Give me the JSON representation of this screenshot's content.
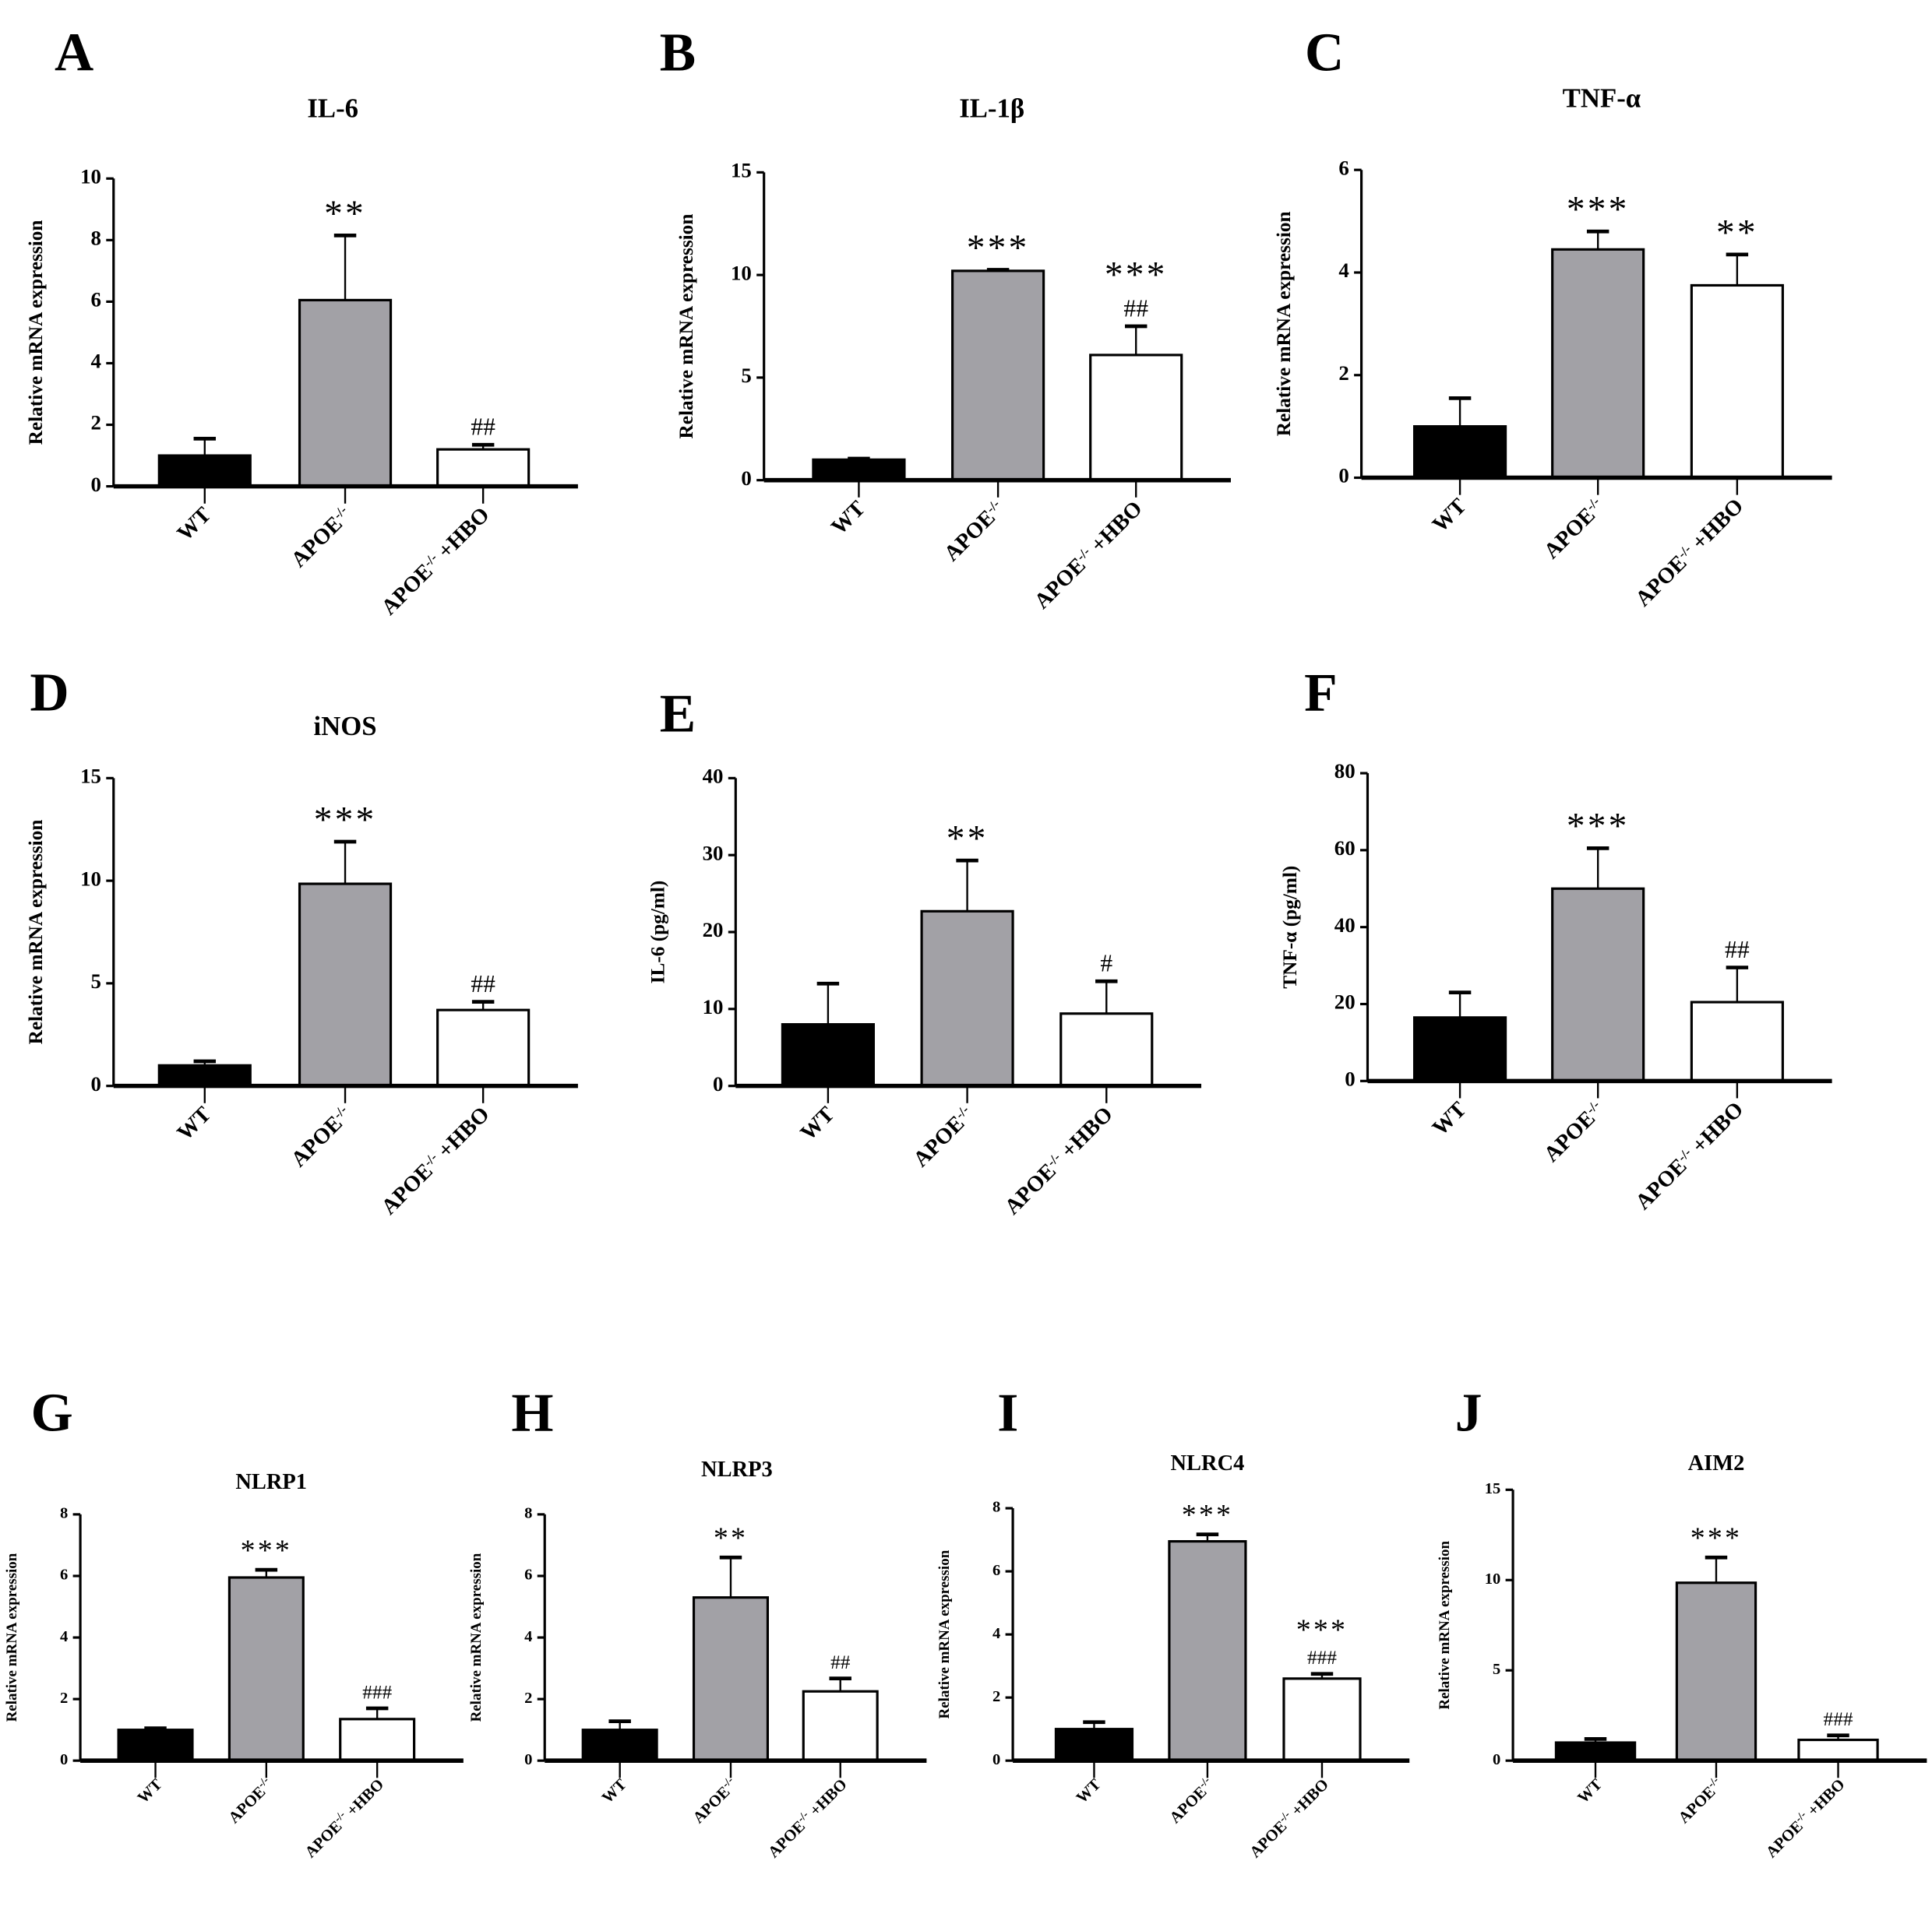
{
  "colors": {
    "WT": "#000000",
    "APOE": "#a2a1a6",
    "HBO": "#ffffff",
    "axis": "#000000"
  },
  "chart_data": [
    {
      "panel": "A",
      "type": "bar",
      "title": "IL-6",
      "ylabel": "Relative mRNA expression",
      "ylim": [
        0,
        10
      ],
      "yticks": [
        0,
        2,
        4,
        6,
        8,
        10
      ],
      "categories": [
        "WT",
        "APOE-/-",
        "APOE-/- +HBO"
      ],
      "values": [
        1.0,
        6.05,
        1.2
      ],
      "errors": [
        0.55,
        2.1,
        0.15
      ],
      "annotations": [
        [],
        [
          "**"
        ],
        [
          "##"
        ]
      ]
    },
    {
      "panel": "B",
      "type": "bar",
      "title": "IL-1β",
      "ylabel": "Relative mRNA expression",
      "ylim": [
        0,
        15
      ],
      "yticks": [
        0,
        5,
        10,
        15
      ],
      "categories": [
        "WT",
        "APOE-/-",
        "APOE-/- +HBO"
      ],
      "values": [
        1.0,
        10.2,
        6.1
      ],
      "errors": [
        0.05,
        0.05,
        1.4
      ],
      "annotations": [
        [],
        [
          "***"
        ],
        [
          "***",
          "##"
        ]
      ]
    },
    {
      "panel": "C",
      "type": "bar",
      "title": "TNF-α",
      "ylabel": "Relative mRNA expression",
      "ylim": [
        0,
        6
      ],
      "yticks": [
        0,
        2,
        4,
        6
      ],
      "categories": [
        "WT",
        "APOE-/-",
        "APOE-/- +HBO"
      ],
      "values": [
        1.0,
        4.45,
        3.75
      ],
      "errors": [
        0.55,
        0.35,
        0.6
      ],
      "annotations": [
        [],
        [
          "***"
        ],
        [
          "**"
        ]
      ]
    },
    {
      "panel": "D",
      "type": "bar",
      "title": "iNOS",
      "ylabel": "Relative mRNA expression",
      "ylim": [
        0,
        15
      ],
      "yticks": [
        0,
        5,
        10,
        15
      ],
      "categories": [
        "WT",
        "APOE-/-",
        "APOE-/- +HBO"
      ],
      "values": [
        1.0,
        9.85,
        3.7
      ],
      "errors": [
        0.2,
        2.05,
        0.4
      ],
      "annotations": [
        [],
        [
          "***"
        ],
        [
          "##"
        ]
      ]
    },
    {
      "panel": "E",
      "type": "bar",
      "title": "",
      "ylabel": "IL-6 (pg/ml)",
      "ylim": [
        0,
        40
      ],
      "yticks": [
        0,
        10,
        20,
        30,
        40
      ],
      "categories": [
        "WT",
        "APOE-/-",
        "APOE-/- +HBO"
      ],
      "values": [
        8.0,
        22.7,
        9.4
      ],
      "errors": [
        5.3,
        6.6,
        4.2
      ],
      "annotations": [
        [],
        [
          "**"
        ],
        [
          "#"
        ]
      ]
    },
    {
      "panel": "F",
      "type": "bar",
      "title": "",
      "ylabel": "TNF-α (pg/ml)",
      "ylim": [
        0,
        80
      ],
      "yticks": [
        0,
        20,
        40,
        60,
        80
      ],
      "categories": [
        "WT",
        "APOE-/-",
        "APOE-/- +HBO"
      ],
      "values": [
        16.5,
        50.0,
        20.5
      ],
      "errors": [
        6.5,
        10.5,
        9.0
      ],
      "annotations": [
        [],
        [
          "***"
        ],
        [
          "##"
        ]
      ]
    },
    {
      "panel": "G",
      "type": "bar",
      "title": "NLRP1",
      "ylabel": "Relative mRNA expression",
      "ylim": [
        0,
        8
      ],
      "yticks": [
        0,
        2,
        4,
        6,
        8
      ],
      "categories": [
        "WT",
        "APOE-/-",
        "APOE-/- +HBO"
      ],
      "values": [
        1.0,
        5.95,
        1.35
      ],
      "errors": [
        0.05,
        0.25,
        0.35
      ],
      "annotations": [
        [],
        [
          "***"
        ],
        [
          "###"
        ]
      ]
    },
    {
      "panel": "H",
      "type": "bar",
      "title": "NLRP3",
      "ylabel": "Relative mRNA expression",
      "ylim": [
        0,
        8
      ],
      "yticks": [
        0,
        2,
        4,
        6,
        8
      ],
      "categories": [
        "WT",
        "APOE-/-",
        "APOE-/- +HBO"
      ],
      "values": [
        1.0,
        5.3,
        2.25
      ],
      "errors": [
        0.28,
        1.3,
        0.42
      ],
      "annotations": [
        [],
        [
          "**"
        ],
        [
          "##"
        ]
      ]
    },
    {
      "panel": "I",
      "type": "bar",
      "title": "NLRC4",
      "ylabel": "Relative mRNA expression",
      "ylim": [
        0,
        8
      ],
      "yticks": [
        0,
        2,
        4,
        6,
        8
      ],
      "categories": [
        "WT",
        "APOE-/-",
        "APOE-/- +HBO"
      ],
      "values": [
        1.0,
        6.95,
        2.6
      ],
      "errors": [
        0.22,
        0.22,
        0.15
      ],
      "annotations": [
        [],
        [
          "***"
        ],
        [
          "***",
          "###"
        ]
      ]
    },
    {
      "panel": "J",
      "type": "bar",
      "title": "AIM2",
      "ylabel": "Relative mRNA expression",
      "ylim": [
        0,
        15
      ],
      "yticks": [
        0,
        5,
        10,
        15
      ],
      "categories": [
        "WT",
        "APOE-/-",
        "APOE-/- +HBO"
      ],
      "values": [
        1.0,
        9.85,
        1.15
      ],
      "errors": [
        0.2,
        1.4,
        0.25
      ],
      "annotations": [
        [],
        [
          "***"
        ],
        [
          "###"
        ]
      ]
    }
  ]
}
